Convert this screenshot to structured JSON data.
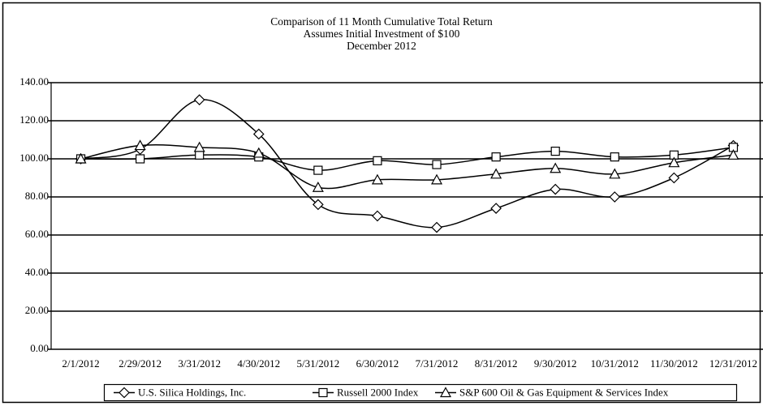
{
  "chart_data": {
    "type": "line",
    "title": [
      "Comparison of 11 Month Cumulative Total Return",
      "Assumes Initial Investment of $100",
      "December 2012"
    ],
    "categories": [
      "2/1/2012",
      "2/29/2012",
      "3/31/2012",
      "4/30/2012",
      "5/31/2012",
      "6/30/2012",
      "7/31/2012",
      "8/31/2012",
      "9/30/2012",
      "10/31/2012",
      "11/30/2012",
      "12/31/2012"
    ],
    "series": [
      {
        "name": "U.S. Silica Holdings, Inc.",
        "color": "#000000",
        "marker": "diamond",
        "values": [
          100,
          105,
          131,
          113,
          76,
          70,
          64,
          74,
          84,
          80,
          90,
          107
        ]
      },
      {
        "name": "Russell 2000 Index",
        "color": "#000000",
        "marker": "square",
        "values": [
          100,
          100,
          102,
          101,
          94,
          99,
          97,
          101,
          104,
          101,
          102,
          106
        ]
      },
      {
        "name": "S&P 600 Oil & Gas Equipment & Services Index",
        "color": "#000000",
        "marker": "triangle",
        "values": [
          100,
          107,
          106,
          103,
          85,
          89,
          89,
          92,
          95,
          92,
          98,
          102
        ]
      }
    ],
    "ylim": [
      0,
      140
    ],
    "yticks": [
      {
        "value": 0,
        "label": "0.00"
      },
      {
        "value": 20,
        "label": "20.00"
      },
      {
        "value": 40,
        "label": "40.00"
      },
      {
        "value": 60,
        "label": "60.00"
      },
      {
        "value": 80,
        "label": "80.00"
      },
      {
        "value": 100,
        "label": "100.00"
      },
      {
        "value": 120,
        "label": "120.00"
      },
      {
        "value": 140,
        "label": "140.00"
      }
    ],
    "grid": true
  }
}
